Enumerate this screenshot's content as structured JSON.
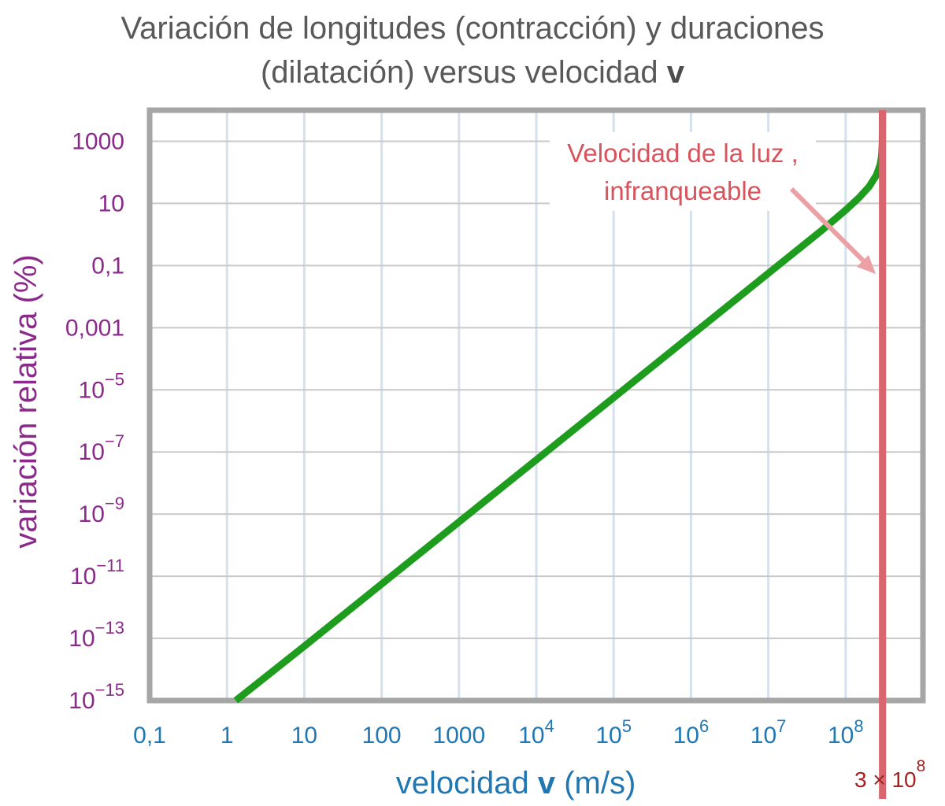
{
  "chart_data": {
    "type": "line",
    "title_line1": "Variación de longitudes (contracción) y duraciones",
    "title_line2": "(dilatación) versus velocidad",
    "title_bold_var": "v",
    "xlabel": "velocidad",
    "xlabel_var": "v",
    "xlabel_unit": "(m/s)",
    "ylabel": "variación relativa  (%)",
    "x_scale": "log",
    "y_scale": "log",
    "xlim": [
      0.1,
      1000000000
    ],
    "ylim": [
      1e-15,
      10000
    ],
    "grid": true,
    "x_ticks": [
      {
        "value": 0.1,
        "base": "0,1",
        "exp": ""
      },
      {
        "value": 1,
        "base": "1",
        "exp": ""
      },
      {
        "value": 10,
        "base": "10",
        "exp": ""
      },
      {
        "value": 100,
        "base": "100",
        "exp": ""
      },
      {
        "value": 1000,
        "base": "1000",
        "exp": ""
      },
      {
        "value": 10000,
        "base": "10",
        "exp": "4"
      },
      {
        "value": 100000,
        "base": "10",
        "exp": "5"
      },
      {
        "value": 1000000,
        "base": "10",
        "exp": "6"
      },
      {
        "value": 10000000,
        "base": "10",
        "exp": "7"
      },
      {
        "value": 100000000,
        "base": "10",
        "exp": "8"
      }
    ],
    "y_ticks": [
      {
        "value": 1000,
        "base": "1000",
        "exp": ""
      },
      {
        "value": 10,
        "base": "10",
        "exp": ""
      },
      {
        "value": 0.1,
        "base": "0,1",
        "exp": ""
      },
      {
        "value": 0.001,
        "base": "0,001",
        "exp": ""
      },
      {
        "value": 1e-05,
        "base": "10",
        "exp": "−5"
      },
      {
        "value": 1e-07,
        "base": "10",
        "exp": "−7"
      },
      {
        "value": 1e-09,
        "base": "10",
        "exp": "−9"
      },
      {
        "value": 1e-11,
        "base": "10",
        "exp": "−11"
      },
      {
        "value": 1e-13,
        "base": "10",
        "exp": "−13"
      },
      {
        "value": 1e-15,
        "base": "10",
        "exp": "−15"
      }
    ],
    "series": [
      {
        "color": "#1e9c1e",
        "points": [
          {
            "x": 1.3,
            "y": 1e-15
          },
          {
            "x": 10,
            "y": 5.6e-14
          },
          {
            "x": 100,
            "y": 5.6e-12
          },
          {
            "x": 1000,
            "y": 5.6e-10
          },
          {
            "x": 10000,
            "y": 5.6e-08
          },
          {
            "x": 100000,
            "y": 5.6e-06
          },
          {
            "x": 1000000,
            "y": 0.00056
          },
          {
            "x": 10000000,
            "y": 0.056
          },
          {
            "x": 50000000,
            "y": 1.4
          },
          {
            "x": 100000000,
            "y": 6.1
          },
          {
            "x": 150000000,
            "y": 15.5
          },
          {
            "x": 200000000,
            "y": 34
          },
          {
            "x": 250000000,
            "y": 81
          },
          {
            "x": 280000000,
            "y": 178
          },
          {
            "x": 290000000,
            "y": 295
          },
          {
            "x": 295000000,
            "y": 450
          }
        ]
      },
      {
        "color": "#8b4513",
        "points": [
          {
            "x": 295000000,
            "y": 450
          },
          {
            "x": 298000000,
            "y": 900
          },
          {
            "x": 299500000,
            "y": 3000
          },
          {
            "x": 299792458,
            "y": 10000
          }
        ]
      }
    ],
    "light_speed": {
      "x": 300000000,
      "base": "3 × 10",
      "exp": "8"
    },
    "annotation": {
      "line1": "Velocidad de la luz ,",
      "line2": "infranqueable"
    },
    "colors": {
      "y_ticks": "#8a2a8a",
      "x_ticks": "#1f77b4",
      "ylabel": "#8b2a8b",
      "xlabel": "#1f77b4",
      "light_line": "#d9666e",
      "light_label": "#a52020",
      "annotation": "#d9535c",
      "arrow": "#eda0a4",
      "grid": "#d6e1ec",
      "frame": "#a6a6a6",
      "title": "#595959"
    }
  }
}
